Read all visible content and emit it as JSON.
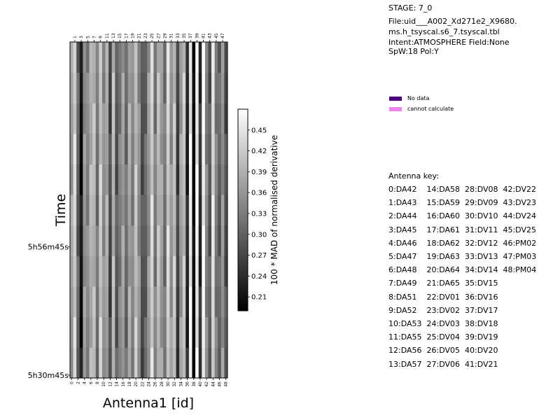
{
  "header": {
    "stage": "STAGE: 7_0",
    "file_line1": "File:uid___A002_Xd271e2_X9680.",
    "file_line2": "ms.h_tsyscal.s6_7.tsyscal.tbl",
    "intent": "Intent:ATMOSPHERE Field:None",
    "spw": "SpW:18 Pol:Y"
  },
  "legend": [
    {
      "label": "No data",
      "color": "#4b0082"
    },
    {
      "label": "cannot calculate",
      "color": "#ee82ee"
    }
  ],
  "antenna_key": {
    "title": "Antenna key:",
    "rows": [
      "0:DA42    14:DA58  28:DV08  42:DV22",
      "1:DA43    15:DA59  29:DV09  43:DV23",
      "2:DA44    16:DA60  30:DV10  44:DV24",
      "3:DA45    17:DA61  31:DV11  45:DV25",
      "4:DA46    18:DA62  32:DV12  46:PM02",
      "5:DA47    19:DA63  33:DV13  47:PM03",
      "6:DA48    20:DA64  34:DV14  48:PM04",
      "7:DA49    21:DA65  35:DV15",
      "8:DA51    22:DV01  36:DV16",
      "9:DA52    23:DV02  37:DV17",
      "10:DA53  24:DV03  38:DV18",
      "11:DA55  25:DV04  39:DV19",
      "12:DA56  26:DV05  40:DV20",
      "13:DA57  27:DV06  41:DV21"
    ]
  },
  "chart_data": {
    "type": "heatmap",
    "xlabel": "Antenna1 [id]",
    "ylabel": "Time",
    "colorbar_label": "100 * MAD of normalised derivative",
    "colorbar_range": [
      0.19,
      0.48
    ],
    "colorbar_ticks": [
      "0.21",
      "0.24",
      "0.27",
      "0.30",
      "0.33",
      "0.36",
      "0.39",
      "0.42",
      "0.45"
    ],
    "x_ticks_bottom": [
      "0",
      "2",
      "4",
      "6",
      "8",
      "10",
      "12",
      "14",
      "16",
      "18",
      "20",
      "22",
      "24",
      "26",
      "28",
      "30",
      "32",
      "34",
      "36",
      "38",
      "40",
      "42",
      "44",
      "46",
      "48"
    ],
    "x_ticks_top": [
      "1",
      "3",
      "5",
      "7",
      "9",
      "11",
      "13",
      "15",
      "17",
      "19",
      "21",
      "23",
      "25",
      "27",
      "29",
      "31",
      "33",
      "35",
      "37",
      "39",
      "41",
      "43",
      "45",
      "47"
    ],
    "y_ticks": [
      {
        "label": "5h30m45s",
        "row": 0
      },
      {
        "label": "5h56m45s",
        "row": 4.2
      }
    ],
    "n_antennas": 49,
    "n_time_rows": 11,
    "antenna_base_values": [
      0.37,
      0.43,
      0.3,
      0.21,
      0.36,
      0.34,
      0.39,
      0.4,
      0.32,
      0.42,
      0.35,
      0.38,
      0.27,
      0.4,
      0.29,
      0.33,
      0.37,
      0.31,
      0.38,
      0.34,
      0.41,
      0.35,
      0.28,
      0.3,
      0.36,
      0.43,
      0.33,
      0.4,
      0.37,
      0.32,
      0.43,
      0.36,
      0.41,
      0.26,
      0.37,
      0.41,
      0.23,
      0.46,
      0.19,
      0.46,
      0.24,
      0.47,
      0.34,
      0.29,
      0.44,
      0.33,
      0.3,
      0.36,
      0.28
    ]
  }
}
